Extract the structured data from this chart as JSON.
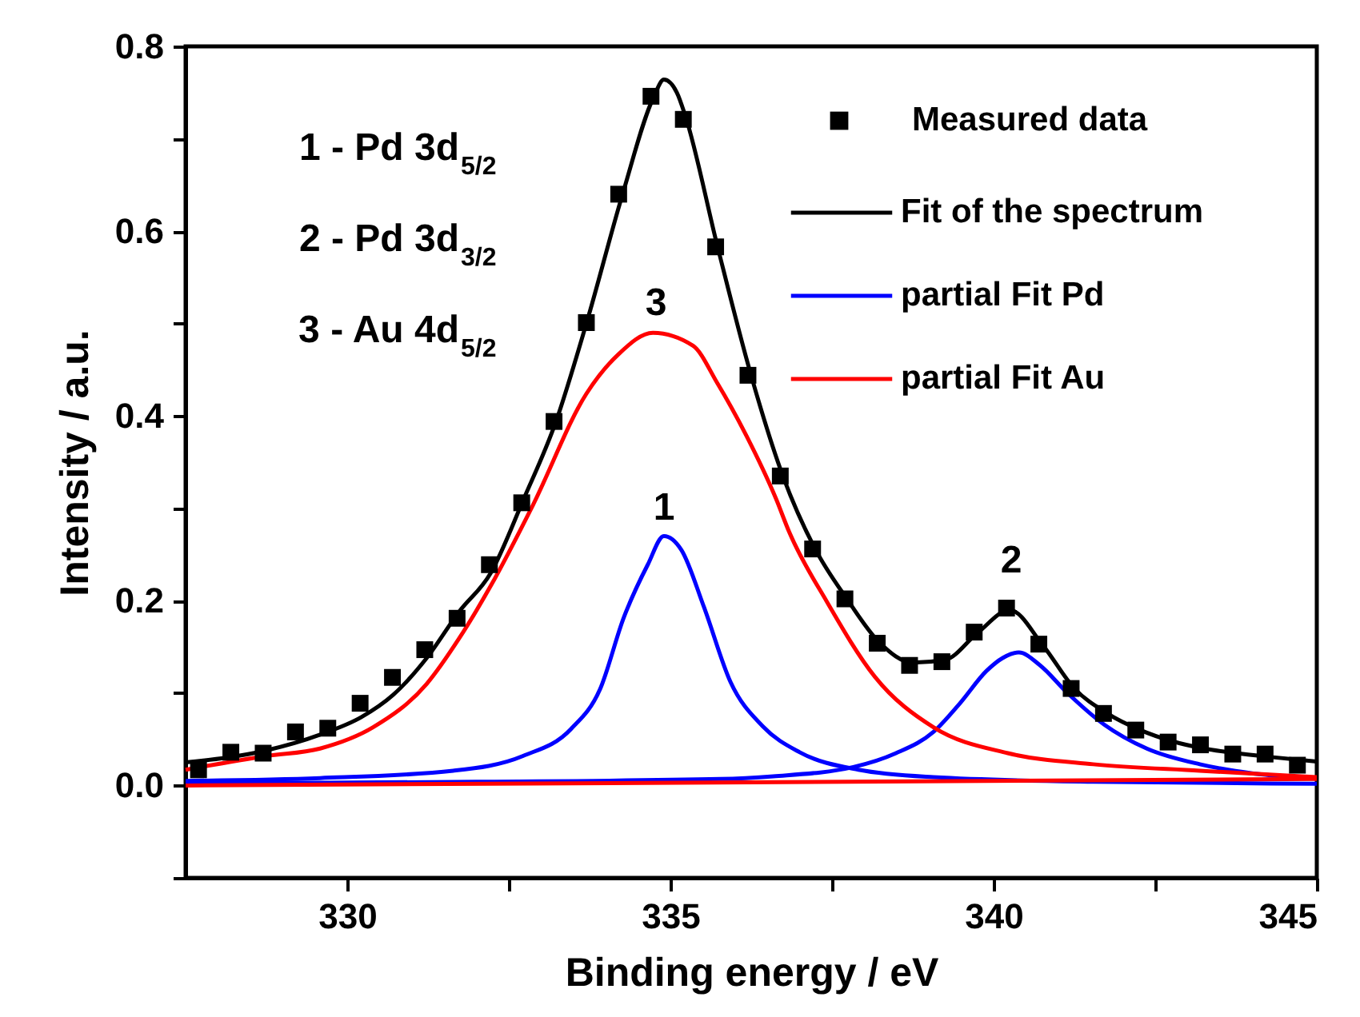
{
  "chart_data": {
    "type": "line",
    "xlabel": "Binding energy / eV",
    "ylabel": "Intensity / a.u.",
    "xlim": [
      327.5,
      345
    ],
    "xticks": [
      330,
      {
        "value": 332.5,
        "label": null
      },
      335,
      {
        "value": 337.5,
        "label": null
      },
      340,
      {
        "value": 342.5,
        "label": null
      },
      345
    ],
    "ylim": [
      -0.1,
      0.8
    ],
    "yticks": [
      {
        "value": -0.1,
        "label": null
      },
      {
        "value": 0,
        "label": "0.0"
      },
      {
        "value": 0.1,
        "label": null
      },
      {
        "value": 0.2,
        "label": "0.2"
      },
      {
        "value": 0.3,
        "label": null
      },
      {
        "value": 0.4,
        "label": "0.4"
      },
      {
        "value": 0.5,
        "label": null
      },
      {
        "value": 0.6,
        "label": "0.6"
      },
      {
        "value": 0.7,
        "label": null
      },
      {
        "value": 0.8,
        "label": "0.8"
      }
    ],
    "grid": false,
    "legend": "top right",
    "line_style": "solid",
    "annotations": [
      "1 - Pd 3d$_{5/2}$",
      "2 - Pd 3d$_{3/2}$",
      "3 - Au 4d$_{5/2}$",
      "1",
      "2",
      "3"
    ],
    "series": [
      {
        "name": "Measured data",
        "type": "scatter",
        "marker": "square",
        "color": "#000000",
        "x": [
          327.7,
          328.2,
          328.7,
          329.2,
          329.7,
          330.2,
          330.7,
          331.2,
          331.7,
          332.2,
          332.7,
          333.2,
          333.7,
          334.2,
          334.7,
          335.2,
          335.7,
          336.2,
          336.7,
          337.2,
          337.7,
          338.2,
          338.7,
          339.2,
          339.7,
          340.2,
          340.7,
          341.2,
          341.7,
          342.2,
          342.7,
          343.2,
          343.7,
          344.2,
          344.7
        ],
        "values": [
          0.017,
          0.036,
          0.035,
          0.058,
          0.062,
          0.089,
          0.117,
          0.147,
          0.181,
          0.239,
          0.306,
          0.394,
          0.501,
          0.64,
          0.746,
          0.721,
          0.583,
          0.444,
          0.335,
          0.256,
          0.202,
          0.154,
          0.13,
          0.134,
          0.166,
          0.192,
          0.153,
          0.105,
          0.078,
          0.06,
          0.047,
          0.044,
          0.034,
          0.034,
          0.022
        ]
      },
      {
        "name": "Fit of the spectrum",
        "marker": "none",
        "color": "#000000",
        "x": [
          327.5,
          328.75,
          329.58,
          330.22,
          330.71,
          331.23,
          331.73,
          332.22,
          332.73,
          333.23,
          333.7,
          334.26,
          334.74,
          334.9,
          335.1,
          335.23,
          335.73,
          336.24,
          336.74,
          337.24,
          337.73,
          338.23,
          338.75,
          339.25,
          339.75,
          340.25,
          340.76,
          341.25,
          341.76,
          342.27,
          342.76,
          343.26,
          343.75,
          344.26,
          345
        ],
        "values": [
          0.025,
          0.038,
          0.055,
          0.074,
          0.098,
          0.138,
          0.188,
          0.23,
          0.31,
          0.394,
          0.5,
          0.64,
          0.745,
          0.764,
          0.75,
          0.725,
          0.583,
          0.446,
          0.335,
          0.256,
          0.202,
          0.155,
          0.133,
          0.136,
          0.165,
          0.19,
          0.152,
          0.105,
          0.078,
          0.06,
          0.048,
          0.04,
          0.035,
          0.031,
          0.026
        ]
      },
      {
        "name": "partial Fit Pd",
        "marker": "none",
        "color": "#0000ff",
        "x": [
          327.5,
          329.58,
          331.64,
          332.72,
          333.46,
          333.91,
          334.28,
          334.65,
          334.9,
          335.17,
          335.52,
          335.93,
          336.43,
          337.0,
          337.91,
          339.07,
          341.54,
          345
        ],
        "values": [
          0.005,
          0.008,
          0.016,
          0.032,
          0.061,
          0.104,
          0.182,
          0.239,
          0.27,
          0.255,
          0.193,
          0.112,
          0.064,
          0.036,
          0.017,
          0.009,
          0.004,
          0.002
        ]
      },
      {
        "marker": "none",
        "color": "#0000ff",
        "x": [
          327.5,
          332,
          335.77,
          336.59,
          337.83,
          338.49,
          339.07,
          339.48,
          339.89,
          340.14,
          340.39,
          340.72,
          341.13,
          341.71,
          342.37,
          343.19,
          344.02,
          345
        ],
        "values": [
          0.002,
          0.004,
          0.007,
          0.01,
          0.02,
          0.035,
          0.058,
          0.089,
          0.124,
          0.138,
          0.144,
          0.13,
          0.101,
          0.066,
          0.04,
          0.023,
          0.013,
          0.008
        ]
      },
      {
        "name": "partial Fit Au",
        "marker": "none",
        "color": "#ff0000",
        "x": [
          327.5,
          328.75,
          329.58,
          330.4,
          331.23,
          331.73,
          332.22,
          332.87,
          333.7,
          334.2,
          334.73,
          335.35,
          335.73,
          336.18,
          336.63,
          336.84,
          337.42,
          338.16,
          339.07,
          340.22,
          341.54,
          343.19,
          345
        ],
        "values": [
          0.017,
          0.032,
          0.04,
          0.063,
          0.11,
          0.159,
          0.216,
          0.303,
          0.424,
          0.467,
          0.49,
          0.476,
          0.435,
          0.378,
          0.311,
          0.274,
          0.199,
          0.118,
          0.063,
          0.035,
          0.023,
          0.016,
          0.009
        ]
      },
      {
        "marker": "none",
        "color": "#ff0000",
        "x": [
          327.5,
          345
        ],
        "values": [
          0.0,
          0.007
        ]
      }
    ]
  }
}
